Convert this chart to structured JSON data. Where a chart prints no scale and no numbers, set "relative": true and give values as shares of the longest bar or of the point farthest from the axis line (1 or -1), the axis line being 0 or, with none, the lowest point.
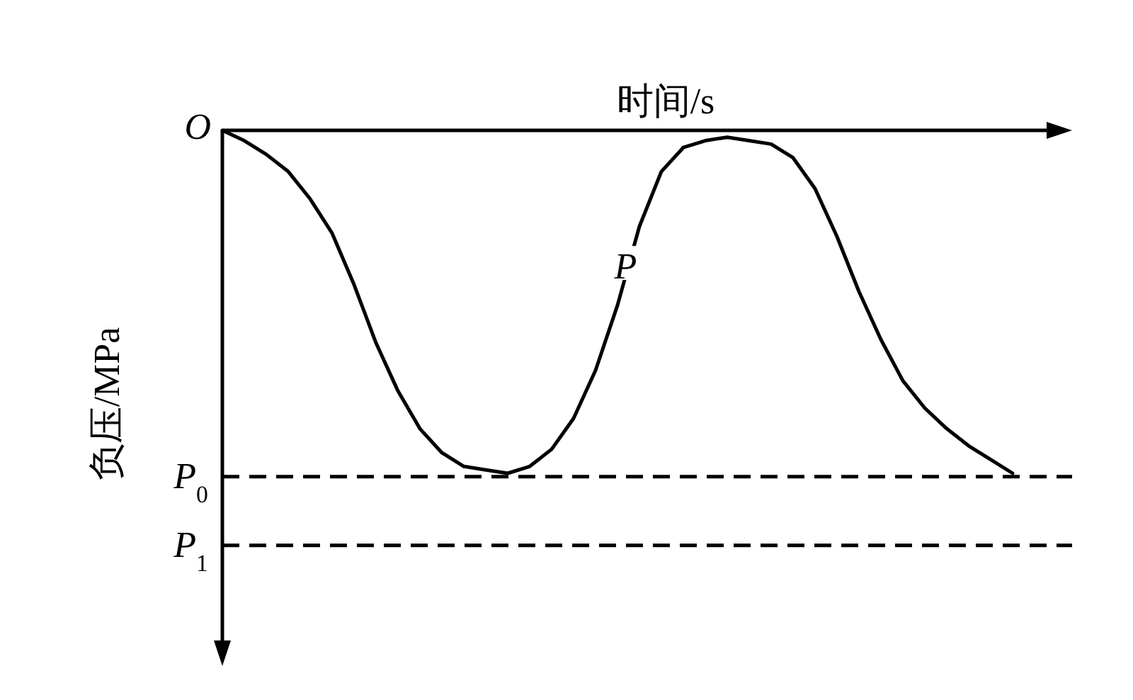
{
  "chart_data": {
    "type": "line",
    "relative": true,
    "xlabel": "时间/s",
    "ylabel": "负压/MPa",
    "categories": [
      null,
      null,
      null,
      null,
      null,
      null,
      null,
      null,
      null,
      null,
      null,
      null,
      null,
      null,
      null,
      null,
      null,
      null,
      null,
      null,
      null,
      null,
      null,
      null,
      null,
      null,
      null,
      null,
      null,
      null,
      null,
      null,
      null,
      null,
      null,
      null,
      null
    ],
    "series": [
      {
        "color": "#000000",
        "values": [
          0,
          -0.03,
          -0.07,
          -0.12,
          -0.2,
          -0.3,
          -0.45,
          -0.62,
          -0.76,
          -0.87,
          -0.94,
          -0.98,
          -0.99,
          -1.0,
          -0.98,
          -0.93,
          -0.84,
          -0.7,
          -0.51,
          -0.28,
          -0.12,
          -0.05,
          -0.03,
          -0.02,
          -0.03,
          -0.04,
          -0.08,
          -0.17,
          -0.31,
          -0.47,
          -0.61,
          -0.73,
          -0.81,
          -0.87,
          -0.92,
          -0.96,
          -1.0
        ]
      }
    ],
    "ref_lines": [
      {
        "axis": "y",
        "value": -1.01,
        "label": "P$_{0}$",
        "color": "#000000",
        "line_style": "dashed"
      },
      {
        "axis": "y",
        "value": -1.21,
        "label": "P$_{1}$",
        "color": "#000000",
        "line_style": "dashed"
      }
    ],
    "annotations": [
      "O",
      "P"
    ]
  }
}
